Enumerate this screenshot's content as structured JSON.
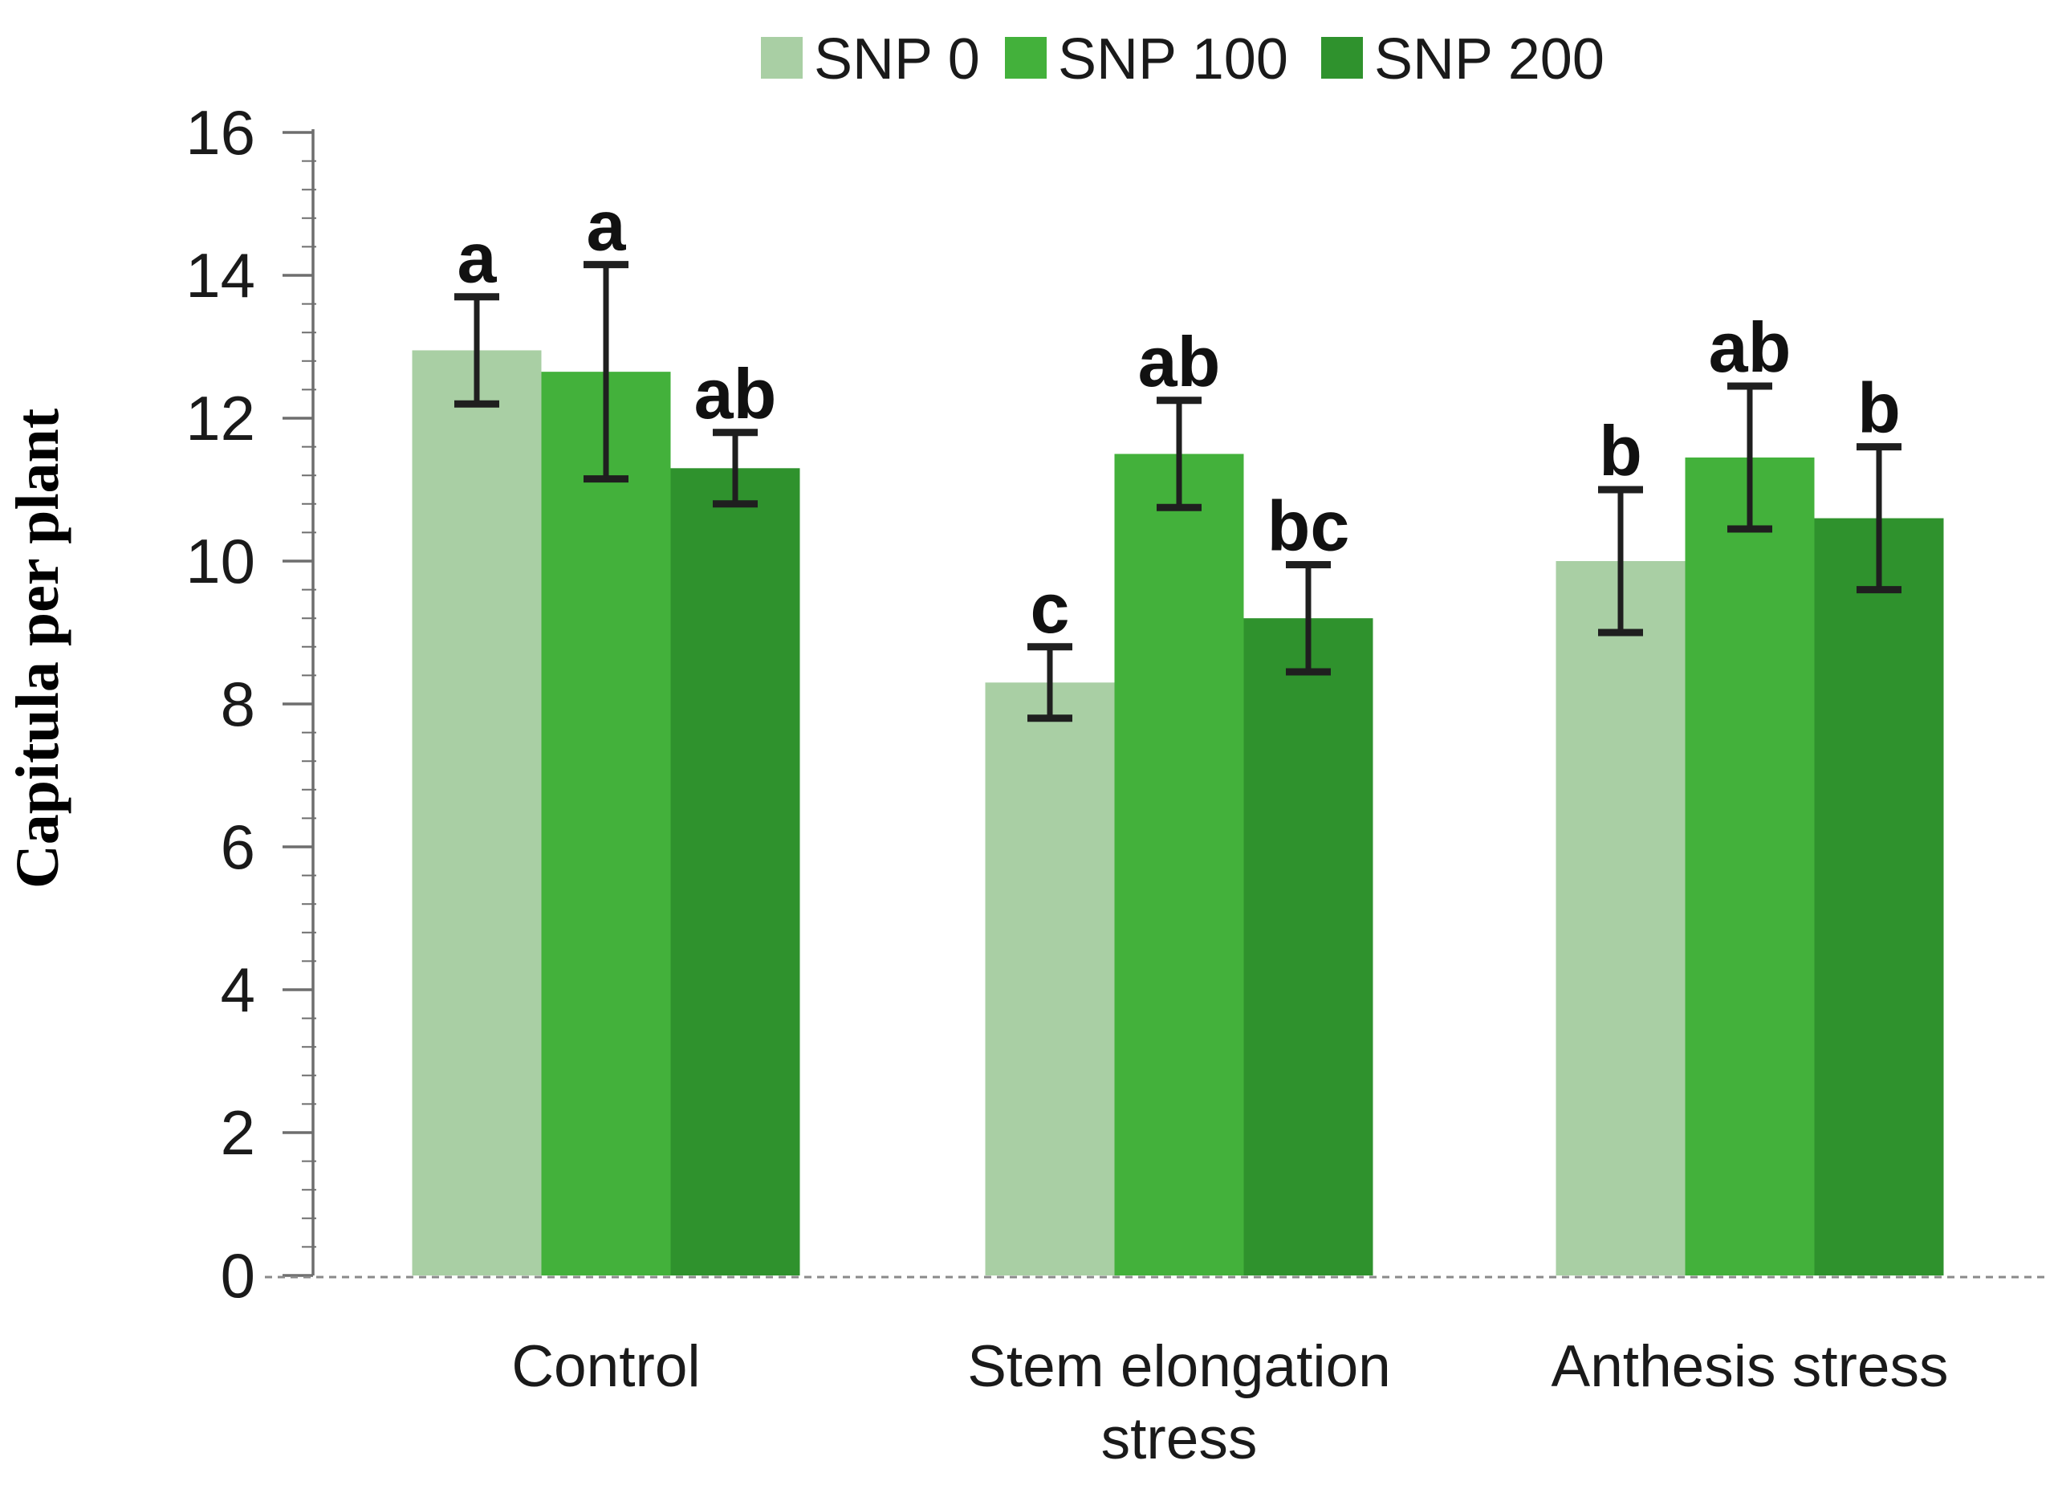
{
  "chart_data": {
    "type": "bar",
    "title": "",
    "ylabel": "Capitula per plant",
    "xlabel": "",
    "ylim": [
      0,
      16
    ],
    "ytick_step": 2,
    "minor_tick_step": 0.4,
    "yticks": [
      "0",
      "2",
      "4",
      "6",
      "8",
      "10",
      "12",
      "14",
      "16"
    ],
    "grid": false,
    "legend_position": "top-center",
    "error_bars": "symmetric, capped, black",
    "categories": [
      "Control",
      "Stem elongation stress",
      "Anthesis stress"
    ],
    "category_lines": [
      [
        "Control"
      ],
      [
        "Stem elongation",
        "stress"
      ],
      [
        "Anthesis stress"
      ]
    ],
    "series": [
      {
        "name": "SNP 0",
        "color": "#a9cfa4",
        "values": [
          12.95,
          8.3,
          10.0
        ],
        "errors": [
          0.75,
          0.5,
          1.0
        ],
        "letters": [
          "a",
          "c",
          "b"
        ]
      },
      {
        "name": "SNP 100",
        "color": "#43b13b",
        "values": [
          12.65,
          11.5,
          11.45
        ],
        "errors": [
          1.5,
          0.75,
          1.0
        ],
        "letters": [
          "a",
          "ab",
          "ab"
        ]
      },
      {
        "name": "SNP 200",
        "color": "#2f922d",
        "values": [
          11.3,
          9.2,
          10.6
        ],
        "errors": [
          0.5,
          0.75,
          1.0
        ],
        "letters": [
          "ab",
          "bc",
          "b"
        ]
      }
    ],
    "colors": {
      "axis": "#6e6e6e",
      "baseline": "#8a8a8a",
      "error_bar": "#1f1f1f",
      "text": "#1a1a1a"
    }
  }
}
